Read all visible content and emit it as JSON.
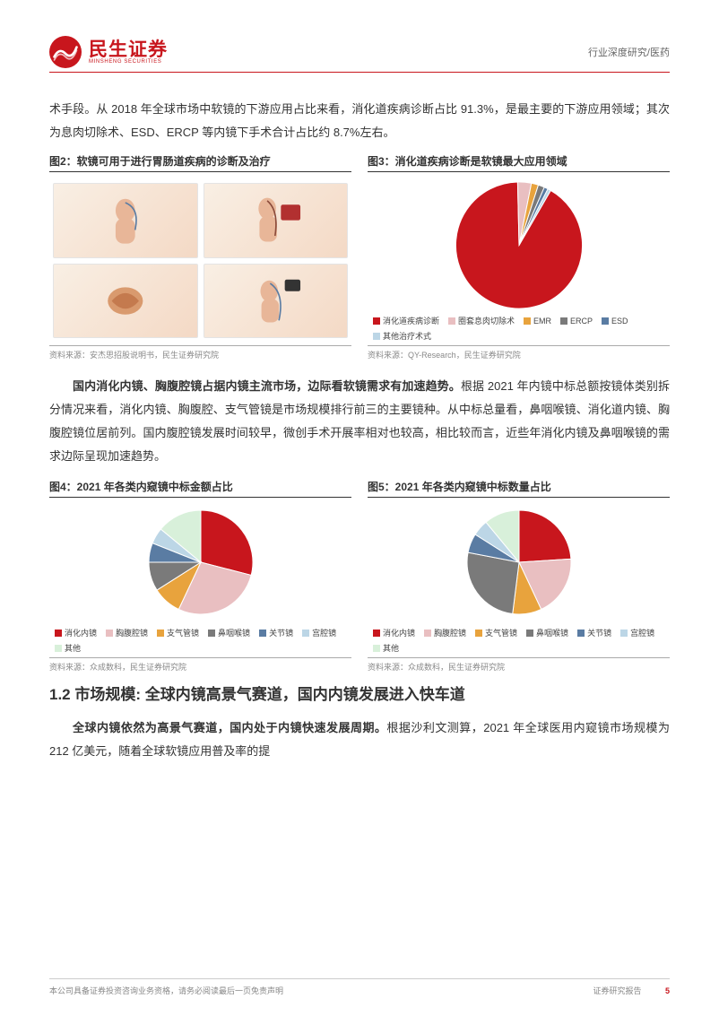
{
  "header": {
    "logo_cn": "民生证券",
    "logo_en": "MINSHENG SECURITIES",
    "right": "行业深度研究/医药"
  },
  "para1": "术手段。从 2018 年全球市场中软镜的下游应用占比来看，消化道疾病诊断占比 91.3%，是最主要的下游应用领域；其次为息肉切除术、ESD、ERCP 等内镜下手术合计占比约 8.7%左右。",
  "fig2": {
    "title": "图2：软镜可用于进行胃肠道疾病的诊断及治疗",
    "source": "资料来源：安杰思招股说明书，民生证券研究院"
  },
  "fig3": {
    "title": "图3：消化道疾病诊断是软镜最大应用领域",
    "source": "资料来源：QY-Research，民生证券研究院",
    "type": "pie",
    "slices": [
      {
        "label": "消化道疾病诊断",
        "value": 91.3,
        "color": "#c8161d"
      },
      {
        "label": "圈套息肉切除术",
        "value": 3.5,
        "color": "#e9bfc1"
      },
      {
        "label": "EMR",
        "value": 1.8,
        "color": "#e8a33d"
      },
      {
        "label": "ERCP",
        "value": 1.6,
        "color": "#7a7a7a"
      },
      {
        "label": "ESD",
        "value": 1.0,
        "color": "#5a7ca3"
      },
      {
        "label": "其他治疗术式",
        "value": 0.8,
        "color": "#bcd6e6"
      }
    ],
    "radius": 72,
    "start_angle_deg": -60
  },
  "para2_bold": "国内消化内镜、胸腹腔镜占据内镜主流市场，边际看软镜需求有加速趋势。",
  "para2": "根据 2021 年内镜中标总额按镜体类别拆分情况来看，消化内镜、胸腹腔、支气管镜是市场规模排行前三的主要镜种。从中标总量看，鼻咽喉镜、消化道内镜、胸腹腔镜位居前列。国内腹腔镜发展时间较早，微创手术开展率相对也较高，相比较而言，近些年消化内镜及鼻咽喉镜的需求边际呈现加速趋势。",
  "fig4": {
    "title": "图4：2021 年各类内窥镜中标金额占比",
    "source": "资料来源：众成数科，民生证券研究院",
    "type": "pie",
    "radius": 58,
    "start_angle_deg": -90,
    "slices": [
      {
        "label": "消化内镜",
        "value": 29,
        "color": "#c8161d"
      },
      {
        "label": "胸腹腔镜",
        "value": 28,
        "color": "#e9bfc1"
      },
      {
        "label": "支气管镜",
        "value": 9,
        "color": "#e8a33d"
      },
      {
        "label": "鼻咽喉镜",
        "value": 9,
        "color": "#7a7a7a"
      },
      {
        "label": "关节镜",
        "value": 6,
        "color": "#5a7ca3"
      },
      {
        "label": "宫腔镜",
        "value": 5,
        "color": "#bcd6e6"
      },
      {
        "label": "其他",
        "value": 14,
        "color": "#d8f0da"
      }
    ]
  },
  "fig5": {
    "title": "图5：2021 年各类内窥镜中标数量占比",
    "source": "资料来源：众成数科，民生证券研究院",
    "type": "pie",
    "radius": 58,
    "start_angle_deg": -90,
    "slices": [
      {
        "label": "消化内镜",
        "value": 24,
        "color": "#c8161d"
      },
      {
        "label": "胸腹腔镜",
        "value": 19,
        "color": "#e9bfc1"
      },
      {
        "label": "支气管镜",
        "value": 9,
        "color": "#e8a33d"
      },
      {
        "label": "鼻咽喉镜",
        "value": 26,
        "color": "#7a7a7a"
      },
      {
        "label": "关节镜",
        "value": 6,
        "color": "#5a7ca3"
      },
      {
        "label": "宫腔镜",
        "value": 5,
        "color": "#bcd6e6"
      },
      {
        "label": "其他",
        "value": 11,
        "color": "#d8f0da"
      }
    ]
  },
  "section_heading": "1.2 市场规模: 全球内镜高景气赛道，国内内镜发展进入快车道",
  "para3_bold": "全球内镜依然为高景气赛道，国内处于内镜快速发展周期。",
  "para3": "根据沙利文测算，2021 年全球医用内窥镜市场规模为 212 亿美元，随着全球软镜应用普及率的提",
  "footer": {
    "left": "本公司具备证券投资咨询业务资格，请务必阅读最后一页免责声明",
    "right_label": "证券研究报告",
    "page": "5"
  },
  "colors": {
    "brand_red": "#c8161d"
  }
}
